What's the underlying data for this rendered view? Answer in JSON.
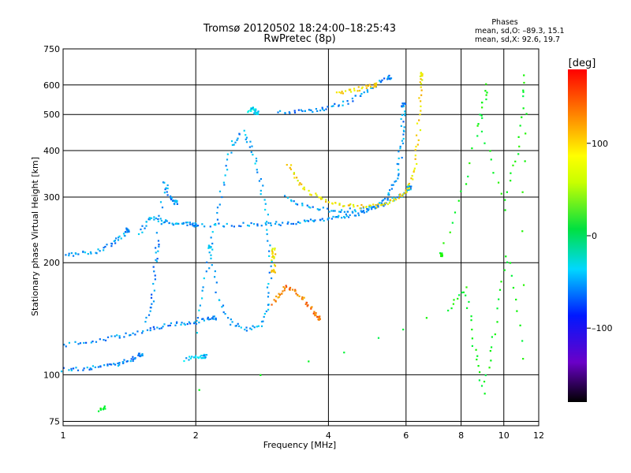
{
  "chart_data": {
    "type": "scatter",
    "title": "Tromsø 20120502 18:24:00–18:25:43",
    "subtitle": "RwPretec (8p)",
    "xlabel": "Frequency [MHz]",
    "ylabel": "Stationary phase Virtual Height [km]",
    "x_scale": "log",
    "y_scale": "log",
    "xlim": [
      1,
      12
    ],
    "ylim": [
      73,
      750
    ],
    "x_ticks": [
      1,
      2,
      4,
      6,
      8,
      10,
      12
    ],
    "x_tick_labels": [
      "1",
      "2",
      "4",
      "6",
      "8",
      "10",
      "12"
    ],
    "y_ticks": [
      75,
      100,
      200,
      300,
      400,
      500,
      600,
      750
    ],
    "y_tick_labels": [
      "75",
      "100",
      "200",
      "300",
      "400",
      "500",
      "600",
      "750"
    ],
    "grid": true,
    "stats": {
      "heading": "Phases",
      "line1": "mean, sd,O: –89.3, 15.1",
      "line2": "mean, sd,X:  92.6, 19.7"
    },
    "colorbar": {
      "label": "[deg]",
      "range": [
        -180,
        180
      ],
      "ticks": [
        100,
        0,
        -100
      ],
      "tick_labels": [
        "100",
        "0",
        "–100"
      ],
      "colormap": "rainbow"
    },
    "series": [
      {
        "phase": -95,
        "points": [
          [
            1.0,
            103
          ],
          [
            1.1,
            104
          ],
          [
            1.2,
            105
          ],
          [
            1.3,
            106
          ],
          [
            1.38,
            108
          ],
          [
            1.45,
            111
          ],
          [
            1.5,
            113
          ]
        ]
      },
      {
        "phase": -95,
        "points": [
          [
            1.0,
            120
          ],
          [
            1.15,
            123
          ],
          [
            1.3,
            126
          ],
          [
            1.45,
            129
          ],
          [
            1.6,
            133
          ],
          [
            1.75,
            136
          ],
          [
            1.9,
            138
          ],
          [
            2.05,
            140
          ],
          [
            2.2,
            142
          ]
        ]
      },
      {
        "phase": -90,
        "points": [
          [
            1.02,
            210
          ],
          [
            1.1,
            212
          ],
          [
            1.2,
            215
          ],
          [
            1.3,
            225
          ],
          [
            1.36,
            235
          ],
          [
            1.4,
            245
          ]
        ]
      },
      {
        "phase": -90,
        "points": [
          [
            1.5,
            240
          ],
          [
            1.55,
            262
          ],
          [
            1.6,
            262
          ],
          [
            1.7,
            258
          ],
          [
            1.8,
            255
          ],
          [
            1.9,
            254
          ],
          [
            2.0,
            253
          ]
        ]
      },
      {
        "phase": -92,
        "points": [
          [
            2.0,
            252
          ],
          [
            2.3,
            252
          ],
          [
            2.6,
            253
          ],
          [
            2.9,
            254
          ],
          [
            3.2,
            255
          ],
          [
            3.5,
            257
          ],
          [
            3.8,
            260
          ],
          [
            4.1,
            263
          ],
          [
            4.4,
            267
          ],
          [
            4.7,
            272
          ],
          [
            5.0,
            279
          ],
          [
            5.3,
            290
          ],
          [
            5.55,
            310
          ],
          [
            5.75,
            350
          ],
          [
            5.85,
            410
          ],
          [
            5.9,
            470
          ],
          [
            5.92,
            530
          ]
        ]
      },
      {
        "phase": -90,
        "points": [
          [
            3.2,
            300
          ],
          [
            3.5,
            285
          ],
          [
            3.9,
            278
          ],
          [
            4.3,
            276
          ],
          [
            4.7,
            278
          ],
          [
            5.1,
            283
          ],
          [
            5.5,
            292
          ],
          [
            5.9,
            305
          ],
          [
            6.1,
            318
          ]
        ]
      },
      {
        "phase": -95,
        "points": [
          [
            3.1,
            505
          ],
          [
            3.4,
            508
          ],
          [
            3.7,
            512
          ],
          [
            4.0,
            520
          ],
          [
            4.4,
            540
          ],
          [
            4.8,
            570
          ],
          [
            5.2,
            610
          ],
          [
            5.5,
            630
          ]
        ]
      },
      {
        "phase": 105,
        "points": [
          [
            3.25,
            370
          ],
          [
            3.4,
            330
          ],
          [
            3.6,
            308
          ],
          [
            3.9,
            295
          ],
          [
            4.2,
            287
          ],
          [
            4.6,
            283
          ],
          [
            5.0,
            283
          ],
          [
            5.4,
            287
          ],
          [
            5.8,
            300
          ],
          [
            6.1,
            320
          ],
          [
            6.3,
            360
          ],
          [
            6.4,
            440
          ],
          [
            6.45,
            560
          ],
          [
            6.5,
            640
          ]
        ]
      },
      {
        "phase": 140,
        "points": [
          [
            3.0,
            155
          ],
          [
            3.1,
            165
          ],
          [
            3.2,
            172
          ],
          [
            3.35,
            168
          ],
          [
            3.5,
            160
          ],
          [
            3.65,
            150
          ],
          [
            3.8,
            142
          ]
        ]
      },
      {
        "phase": 105,
        "points": [
          [
            3.0,
            205
          ],
          [
            3.0,
            220
          ],
          [
            3.0,
            190
          ]
        ]
      },
      {
        "phase": 110,
        "points": [
          [
            4.2,
            570
          ],
          [
            4.5,
            580
          ],
          [
            4.8,
            590
          ],
          [
            5.1,
            600
          ]
        ]
      },
      {
        "phase": -85,
        "points": [
          [
            2.0,
            130
          ],
          [
            2.1,
            180
          ],
          [
            2.2,
            240
          ],
          [
            2.3,
            320
          ],
          [
            2.4,
            410
          ],
          [
            2.55,
            450
          ],
          [
            2.7,
            400
          ],
          [
            2.8,
            330
          ],
          [
            2.9,
            260
          ],
          [
            2.95,
            200
          ],
          [
            2.92,
            155
          ],
          [
            2.8,
            135
          ],
          [
            2.6,
            133
          ],
          [
            2.4,
            138
          ],
          [
            2.25,
            160
          ],
          [
            2.15,
            220
          ]
        ]
      },
      {
        "phase": -70,
        "points": [
          [
            2.62,
            510
          ],
          [
            2.7,
            520
          ],
          [
            2.75,
            505
          ]
        ]
      },
      {
        "phase": -95,
        "points": [
          [
            1.55,
            140
          ],
          [
            1.6,
            160
          ],
          [
            1.62,
            200
          ],
          [
            1.64,
            230
          ],
          [
            1.7,
            330
          ],
          [
            1.75,
            300
          ],
          [
            1.8,
            290
          ]
        ]
      },
      {
        "phase": -80,
        "points": [
          [
            1.9,
            110
          ],
          [
            2.0,
            112
          ],
          [
            2.1,
            112
          ]
        ]
      },
      {
        "phase": 15,
        "points": [
          [
            1.2,
            80
          ],
          [
            1.25,
            82
          ],
          [
            7.5,
            150
          ],
          [
            8.2,
            170
          ],
          [
            8.5,
            120
          ],
          [
            9.0,
            90
          ],
          [
            9.5,
            130
          ],
          [
            10.2,
            210
          ],
          [
            11.0,
            110
          ],
          [
            11.2,
            640
          ],
          [
            10.8,
            410
          ],
          [
            10.0,
            280
          ],
          [
            8.8,
            470
          ],
          [
            9.2,
            600
          ],
          [
            8.3,
            340
          ],
          [
            7.2,
            210
          ]
        ]
      }
    ]
  }
}
